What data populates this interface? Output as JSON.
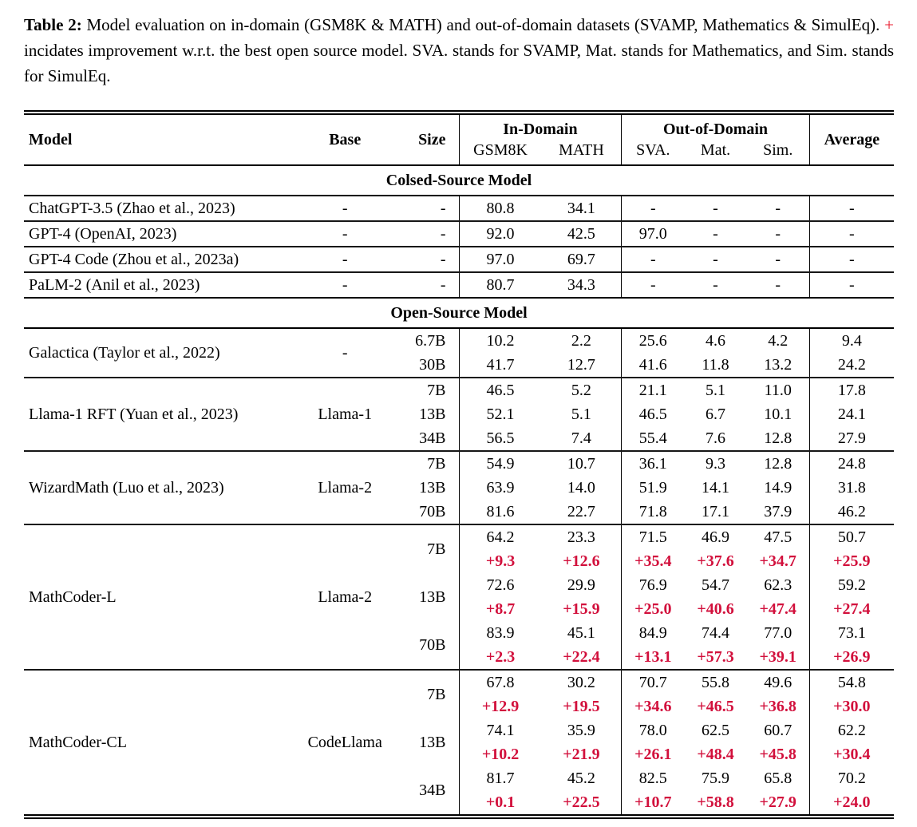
{
  "caption": {
    "label": "Table 2:",
    "text_before_plus": " Model evaluation on in-domain (GSM8K & MATH) and out-of-domain datasets (SVAMP, Mathematics & SimulEq). ",
    "plus": "+",
    "text_after_plus": " incidates improvement w.r.t. the best open source model. SVA. stands for SVAMP, Mat. stands for Mathematics, and Sim. stands for SimulEq."
  },
  "colors": {
    "delta_red": "#d2103c",
    "caption_plus_red": "#e8192c"
  },
  "table": {
    "header": {
      "model": "Model",
      "base": "Base",
      "size": "Size",
      "in_domain": "In-Domain",
      "out_of_domain": "Out-of-Domain",
      "average": "Average",
      "sub": [
        "GSM8K",
        "MATH",
        "SVA.",
        "Mat.",
        "Sim."
      ]
    },
    "sections": [
      {
        "title": "Colsed-Source Model",
        "groups": [
          {
            "model": "ChatGPT-3.5 (Zhao et al., 2023)",
            "base": "-",
            "rows": [
              {
                "size": "-",
                "values": [
                  "80.8",
                  "34.1",
                  "-",
                  "-",
                  "-",
                  "-"
                ]
              }
            ]
          },
          {
            "model": "GPT-4 (OpenAI, 2023)",
            "base": "-",
            "rows": [
              {
                "size": "-",
                "values": [
                  "92.0",
                  "42.5",
                  "97.0",
                  "-",
                  "-",
                  "-"
                ]
              }
            ]
          },
          {
            "model": "GPT-4 Code (Zhou et al., 2023a)",
            "base": "-",
            "rows": [
              {
                "size": "-",
                "values": [
                  "97.0",
                  "69.7",
                  "-",
                  "-",
                  "-",
                  "-"
                ]
              }
            ]
          },
          {
            "model": "PaLM-2 (Anil et al., 2023)",
            "base": "-",
            "rows": [
              {
                "size": "-",
                "values": [
                  "80.7",
                  "34.3",
                  "-",
                  "-",
                  "-",
                  "-"
                ]
              }
            ]
          }
        ]
      },
      {
        "title": "Open-Source Model",
        "groups": [
          {
            "model": "Galactica (Taylor et al., 2022)",
            "base": "-",
            "rows": [
              {
                "size": "6.7B",
                "values": [
                  "10.2",
                  "2.2",
                  "25.6",
                  "4.6",
                  "4.2",
                  "9.4"
                ]
              },
              {
                "size": "30B",
                "values": [
                  "41.7",
                  "12.7",
                  "41.6",
                  "11.8",
                  "13.2",
                  "24.2"
                ]
              }
            ]
          },
          {
            "model": "Llama-1 RFT (Yuan et al., 2023)",
            "base": "Llama-1",
            "rows": [
              {
                "size": "7B",
                "values": [
                  "46.5",
                  "5.2",
                  "21.1",
                  "5.1",
                  "11.0",
                  "17.8"
                ]
              },
              {
                "size": "13B",
                "values": [
                  "52.1",
                  "5.1",
                  "46.5",
                  "6.7",
                  "10.1",
                  "24.1"
                ]
              },
              {
                "size": "34B",
                "values": [
                  "56.5",
                  "7.4",
                  "55.4",
                  "7.6",
                  "12.8",
                  "27.9"
                ]
              }
            ]
          },
          {
            "model": "WizardMath (Luo et al., 2023)",
            "base": "Llama-2",
            "rows": [
              {
                "size": "7B",
                "values": [
                  "54.9",
                  "10.7",
                  "36.1",
                  "9.3",
                  "12.8",
                  "24.8"
                ]
              },
              {
                "size": "13B",
                "values": [
                  "63.9",
                  "14.0",
                  "51.9",
                  "14.1",
                  "14.9",
                  "31.8"
                ]
              },
              {
                "size": "70B",
                "values": [
                  "81.6",
                  "22.7",
                  "71.8",
                  "17.1",
                  "37.9",
                  "46.2"
                ]
              }
            ]
          },
          {
            "model": "MathCoder-L",
            "base": "Llama-2",
            "rows": [
              {
                "size": "7B",
                "values": [
                  "64.2",
                  "23.3",
                  "71.5",
                  "46.9",
                  "47.5",
                  "50.7"
                ],
                "delta": [
                  "+9.3",
                  "+12.6",
                  "+35.4",
                  "+37.6",
                  "+34.7",
                  "+25.9"
                ]
              },
              {
                "size": "13B",
                "values": [
                  "72.6",
                  "29.9",
                  "76.9",
                  "54.7",
                  "62.3",
                  "59.2"
                ],
                "delta": [
                  "+8.7",
                  "+15.9",
                  "+25.0",
                  "+40.6",
                  "+47.4",
                  "+27.4"
                ]
              },
              {
                "size": "70B",
                "values": [
                  "83.9",
                  "45.1",
                  "84.9",
                  "74.4",
                  "77.0",
                  "73.1"
                ],
                "delta": [
                  "+2.3",
                  "+22.4",
                  "+13.1",
                  "+57.3",
                  "+39.1",
                  "+26.9"
                ]
              }
            ]
          },
          {
            "model": "MathCoder-CL",
            "base": "CodeLlama",
            "rows": [
              {
                "size": "7B",
                "values": [
                  "67.8",
                  "30.2",
                  "70.7",
                  "55.8",
                  "49.6",
                  "54.8"
                ],
                "delta": [
                  "+12.9",
                  "+19.5",
                  "+34.6",
                  "+46.5",
                  "+36.8",
                  "+30.0"
                ]
              },
              {
                "size": "13B",
                "values": [
                  "74.1",
                  "35.9",
                  "78.0",
                  "62.5",
                  "60.7",
                  "62.2"
                ],
                "delta": [
                  "+10.2",
                  "+21.9",
                  "+26.1",
                  "+48.4",
                  "+45.8",
                  "+30.4"
                ]
              },
              {
                "size": "34B",
                "values": [
                  "81.7",
                  "45.2",
                  "82.5",
                  "75.9",
                  "65.8",
                  "70.2"
                ],
                "delta": [
                  "+0.1",
                  "+22.5",
                  "+10.7",
                  "+58.8",
                  "+27.9",
                  "+24.0"
                ]
              }
            ]
          }
        ]
      }
    ]
  }
}
